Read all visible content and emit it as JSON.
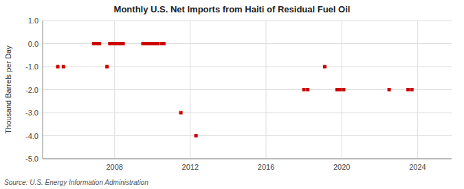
{
  "chart_data": {
    "type": "scatter",
    "title": "Monthly U.S. Net Imports from Haiti of Residual Fuel Oil",
    "ylabel": "Thousand Barrels per Day",
    "source": "Source: U.S. Energy Information Administration",
    "x": [
      2005.0,
      2005.3,
      2006.9,
      2007.0,
      2007.1,
      2007.2,
      2007.6,
      2007.75,
      2007.85,
      2007.95,
      2008.05,
      2008.15,
      2008.25,
      2008.35,
      2008.45,
      2009.5,
      2009.6,
      2009.7,
      2009.8,
      2009.9,
      2010.0,
      2010.1,
      2010.2,
      2010.3,
      2010.5,
      2010.6,
      2011.5,
      2012.3,
      2018.0,
      2018.2,
      2019.1,
      2019.75,
      2019.9,
      2020.1,
      2022.5,
      2023.5,
      2023.7
    ],
    "values": [
      -1.0,
      -1.0,
      0.0,
      0.0,
      0.0,
      0.0,
      -1.0,
      0.0,
      0.0,
      0.0,
      0.0,
      0.0,
      0.0,
      0.0,
      0.0,
      0.0,
      0.0,
      0.0,
      0.0,
      0.0,
      0.0,
      0.0,
      0.0,
      0.0,
      0.0,
      0.0,
      -3.0,
      -4.0,
      -2.0,
      -2.0,
      -1.0,
      -2.0,
      -2.0,
      -2.0,
      -2.0,
      -2.0,
      -2.0
    ],
    "xlim": [
      2004.2,
      2025.8
    ],
    "ylim": [
      -5.0,
      1.0
    ],
    "xticks": [
      2008,
      2012,
      2016,
      2020,
      2024
    ],
    "yticks": [
      {
        "value": 1.0,
        "label": "1.0"
      },
      {
        "value": 0.0,
        "label": "0.0"
      },
      {
        "value": -1.0,
        "label": "-1.0"
      },
      {
        "value": -2.0,
        "label": "-2.0"
      },
      {
        "value": -3.0,
        "label": "-3.0"
      },
      {
        "value": -4.0,
        "label": "-4.0"
      },
      {
        "value": -5.0,
        "label": "-5.0"
      }
    ],
    "color": "#cc0000",
    "marker": "square",
    "grid": true
  }
}
